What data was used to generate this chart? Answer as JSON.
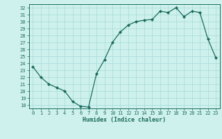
{
  "x": [
    0,
    1,
    2,
    3,
    4,
    5,
    6,
    7,
    8,
    9,
    10,
    11,
    12,
    13,
    14,
    15,
    16,
    17,
    18,
    19,
    20,
    21,
    22,
    23
  ],
  "y": [
    23.5,
    22.0,
    21.0,
    20.5,
    20.0,
    18.5,
    17.8,
    17.7,
    22.5,
    24.5,
    27.0,
    28.5,
    29.5,
    30.0,
    30.2,
    30.3,
    31.5,
    31.3,
    32.0,
    30.7,
    31.5,
    31.3,
    27.5,
    24.8
  ],
  "xlabel": "Humidex (Indice chaleur)",
  "line_color": "#1a6b5a",
  "marker": "D",
  "marker_size": 2.0,
  "bg_color": "#cff1ee",
  "grid_color": "#aaddda",
  "ylim": [
    17.5,
    32.5
  ],
  "xlim": [
    -0.5,
    23.5
  ],
  "yticks": [
    18,
    19,
    20,
    21,
    22,
    23,
    24,
    25,
    26,
    27,
    28,
    29,
    30,
    31,
    32
  ],
  "xticks": [
    0,
    1,
    2,
    3,
    4,
    5,
    6,
    7,
    8,
    9,
    10,
    11,
    12,
    13,
    14,
    15,
    16,
    17,
    18,
    19,
    20,
    21,
    22,
    23
  ],
  "tick_fontsize": 5.0,
  "xlabel_fontsize": 6.0
}
